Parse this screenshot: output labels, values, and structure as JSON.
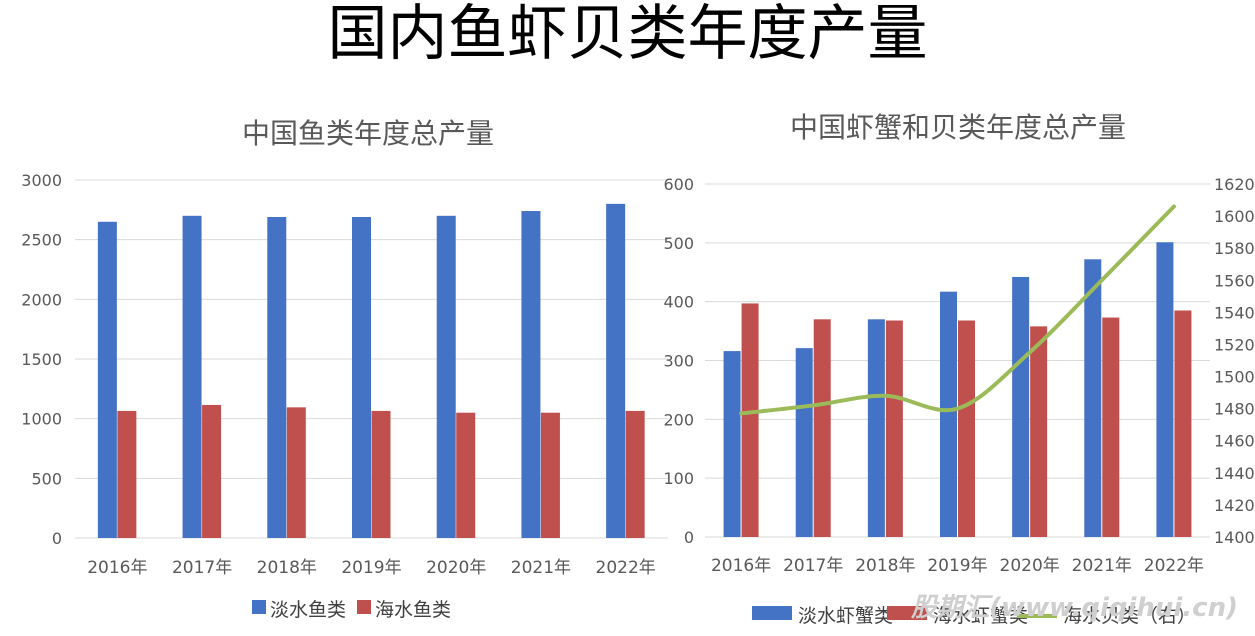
{
  "main_title": "国内鱼虾贝类年度产量",
  "watermark": "股期汇(www.qiqihui.cn)",
  "chart_data": [
    {
      "type": "bar",
      "title": "中国鱼类年度总产量",
      "categories": [
        "2016年",
        "2017年",
        "2018年",
        "2019年",
        "2020年",
        "2021年",
        "2022年"
      ],
      "series": [
        {
          "name": "淡水鱼类",
          "color": "#4472c4",
          "values": [
            2650,
            2700,
            2690,
            2690,
            2700,
            2740,
            2800
          ]
        },
        {
          "name": "海水鱼类",
          "color": "#c0504d",
          "values": [
            1065,
            1115,
            1095,
            1065,
            1050,
            1050,
            1065
          ]
        }
      ],
      "ylim": [
        0,
        3000
      ],
      "yticks": [
        0,
        500,
        1000,
        1500,
        2000,
        2500,
        3000
      ],
      "grid": true,
      "legend": "bottom"
    },
    {
      "type": "bar",
      "title": "中国虾蟹和贝类年度总产量",
      "categories": [
        "2016年",
        "2017年",
        "2018年",
        "2019年",
        "2020年",
        "2021年",
        "2022年"
      ],
      "series": [
        {
          "name": "淡水虾蟹类",
          "type": "bar",
          "axis": "left",
          "color": "#4472c4",
          "values": [
            316,
            321,
            370,
            417,
            442,
            472,
            501
          ]
        },
        {
          "name": "海水虾蟹类",
          "type": "bar",
          "axis": "left",
          "color": "#c0504d",
          "values": [
            397,
            370,
            368,
            368,
            358,
            373,
            385
          ]
        },
        {
          "name": "海水贝类（右）",
          "type": "line",
          "axis": "right",
          "color": "#9bbb59",
          "values": [
            1477,
            1482,
            1488,
            1480,
            1515,
            1560,
            1606
          ]
        }
      ],
      "ylim": [
        0,
        600
      ],
      "yticks": [
        0,
        100,
        200,
        300,
        400,
        500,
        600
      ],
      "y2lim": [
        1400,
        1620
      ],
      "y2ticks": [
        1400,
        1420,
        1440,
        1460,
        1480,
        1500,
        1520,
        1540,
        1560,
        1580,
        1600,
        1620
      ],
      "grid": true,
      "legend": "bottom"
    }
  ]
}
